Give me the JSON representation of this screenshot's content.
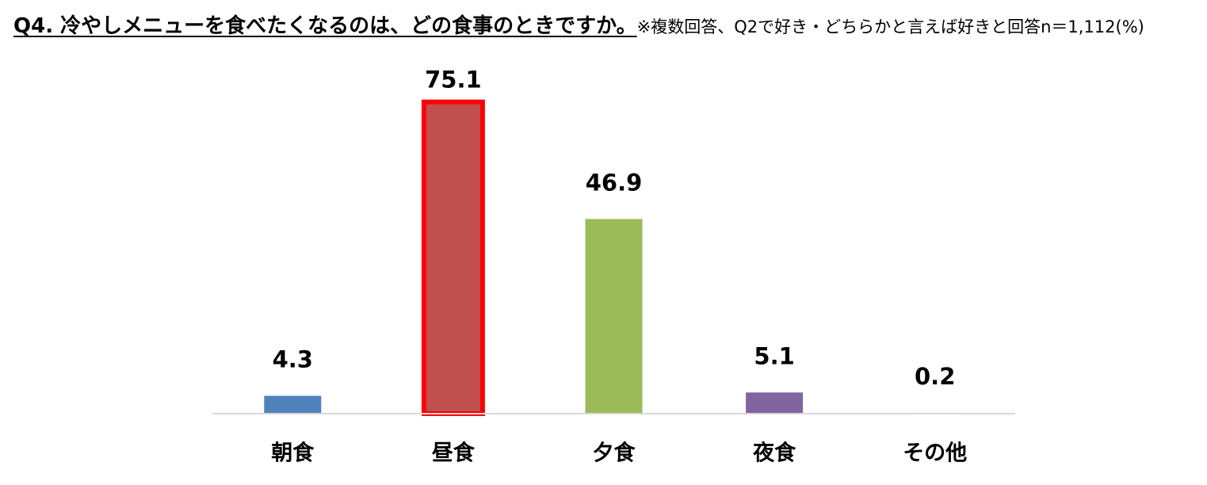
{
  "chart_data": {
    "type": "bar",
    "title": "Q4. 冷やしメニューを食べたくなるのは、どの食事のときですか。",
    "subtitle": "※複数回答、Q2で好き・どちらかと言えば好きと回答n＝1,112(%)",
    "categories": [
      "朝食",
      "昼食",
      "夕食",
      "夜食",
      "その他"
    ],
    "values": [
      4.3,
      75.1,
      46.9,
      5.1,
      0.2
    ],
    "colors": [
      "#4f81bd",
      "#c0504d",
      "#9bbb59",
      "#8064a2",
      "#f79646"
    ],
    "highlight": "昼食",
    "highlight_color": "#ff0000",
    "ylim": [
      0,
      80
    ]
  }
}
